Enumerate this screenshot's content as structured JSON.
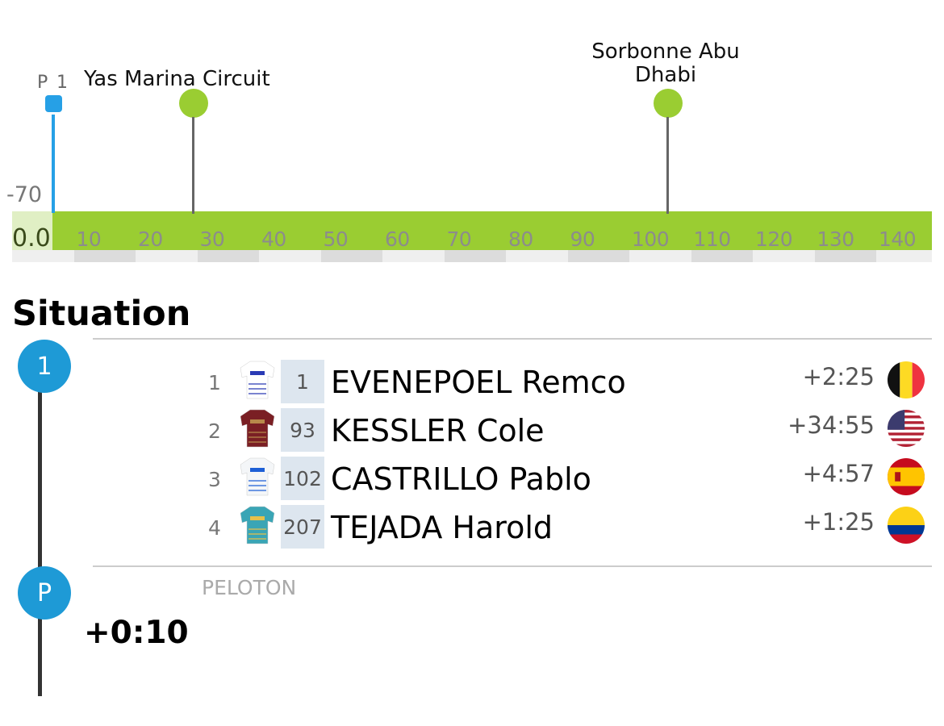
{
  "profile": {
    "start_labels": [
      "-70",
      "0.0"
    ],
    "km_ticks": [
      "10",
      "20",
      "30",
      "40",
      "50",
      "60",
      "70",
      "80",
      "90",
      "100",
      "110",
      "120",
      "130",
      "140"
    ],
    "marker": {
      "label_a": "P",
      "label_b": "1",
      "km": 6.5,
      "color": "#26a0e6"
    },
    "pois": [
      {
        "name": "Yas Marina Circuit",
        "km": 29.4
      },
      {
        "name": "Sorbonne Abu Dhabi",
        "km": 106.3
      }
    ],
    "colors": {
      "bar": "#9acd32",
      "bar_start": "#e0efc4",
      "band_dark": "#dcdcdc",
      "band_light": "#efefef"
    }
  },
  "situation": {
    "title": "Situation",
    "groups": [
      {
        "badge": "1",
        "riders": [
          {
            "pos": "1",
            "bib": "1",
            "name": "EVENEPOEL Remco",
            "gap": "+2:25",
            "team_icon": "red-bull-bora-jersey",
            "flag": "belgium-flag"
          },
          {
            "pos": "2",
            "bib": "93",
            "name": "KESSLER Cole",
            "gap": "+34:55",
            "team_icon": "maroon-jersey",
            "flag": "usa-flag"
          },
          {
            "pos": "3",
            "bib": "102",
            "name": "CASTRILLO Pablo",
            "gap": "+4:57",
            "team_icon": "movistar-jersey",
            "flag": "spain-flag"
          },
          {
            "pos": "4",
            "bib": "207",
            "name": "TEJADA Harold",
            "gap": "+1:25",
            "team_icon": "astana-jersey",
            "flag": "colombia-flag"
          }
        ]
      },
      {
        "badge": "P",
        "label": "PELOTON",
        "gap": "+0:10"
      }
    ],
    "accent": "#1e9ad6"
  }
}
